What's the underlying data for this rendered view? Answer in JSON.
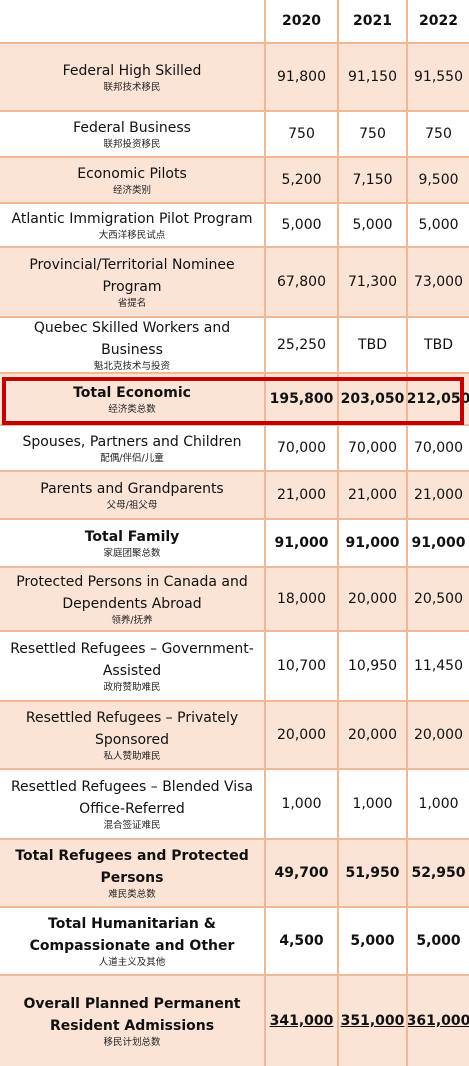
{
  "table": {
    "header": [
      "2020",
      "2021",
      "2022"
    ],
    "rows": [
      {
        "label": "Federal High Skilled",
        "sub": "联邦技术移民",
        "values": [
          "91,800",
          "91,150",
          "91,550"
        ],
        "bold": false
      },
      {
        "label": "Federal Business",
        "sub": "联邦投资移民",
        "values": [
          "750",
          "750",
          "750"
        ],
        "bold": false
      },
      {
        "label": "Economic Pilots",
        "sub": "经济类别",
        "values": [
          "5,200",
          "7,150",
          "9,500"
        ],
        "bold": false
      },
      {
        "label": "Atlantic Immigration Pilot Program",
        "sub": "大西洋移民试点",
        "values": [
          "5,000",
          "5,000",
          "5,000"
        ],
        "bold": false
      },
      {
        "label": "Provincial/Territorial Nominee Program",
        "sub": "省提名",
        "values": [
          "67,800",
          "71,300",
          "73,000"
        ],
        "bold": false
      },
      {
        "label": "Quebec Skilled Workers and Business",
        "sub": "魁北克技术与投资",
        "values": [
          "25,250",
          "TBD",
          "TBD"
        ],
        "bold": false
      },
      {
        "label": "Total Economic",
        "sub": "经济类总数",
        "values": [
          "195,800",
          "203,050",
          "212,050"
        ],
        "bold": true,
        "highlight": true
      },
      {
        "label": "Spouses, Partners and Children",
        "sub": "配偶/伴侣/儿童",
        "values": [
          "70,000",
          "70,000",
          "70,000"
        ],
        "bold": false
      },
      {
        "label": "Parents and Grandparents",
        "sub": "父母/祖父母",
        "values": [
          "21,000",
          "21,000",
          "21,000"
        ],
        "bold": false
      },
      {
        "label": "Total Family",
        "sub": "家庭团聚总数",
        "values": [
          "91,000",
          "91,000",
          "91,000"
        ],
        "bold": true
      },
      {
        "label": "Protected Persons in Canada and Dependents Abroad",
        "sub": "领养/抚养",
        "values": [
          "18,000",
          "20,000",
          "20,500"
        ],
        "bold": false
      },
      {
        "label": "Resettled Refugees – Government-Assisted",
        "sub": "政府赞助难民",
        "values": [
          "10,700",
          "10,950",
          "11,450"
        ],
        "bold": false
      },
      {
        "label": "Resettled Refugees – Privately Sponsored",
        "sub": "私人赞助难民",
        "values": [
          "20,000",
          "20,000",
          "20,000"
        ],
        "bold": false
      },
      {
        "label": "Resettled Refugees – Blended Visa Office-Referred",
        "sub": "混合签证难民",
        "values": [
          "1,000",
          "1,000",
          "1,000"
        ],
        "bold": false
      },
      {
        "label": "Total Refugees and Protected Persons",
        "sub": "难民类总数",
        "values": [
          "49,700",
          "51,950",
          "52,950"
        ],
        "bold": true
      },
      {
        "label": "Total Humanitarian & Compassionate and Other",
        "sub": "人道主义及其他",
        "values": [
          "4,500",
          "5,000",
          "5,000"
        ],
        "bold": true
      },
      {
        "label": "Overall Planned Permanent Resident Admissions",
        "sub": "移民计划总数",
        "values": [
          "341,000",
          "351,000",
          "361,000"
        ],
        "bold": true,
        "underline": true
      }
    ]
  }
}
